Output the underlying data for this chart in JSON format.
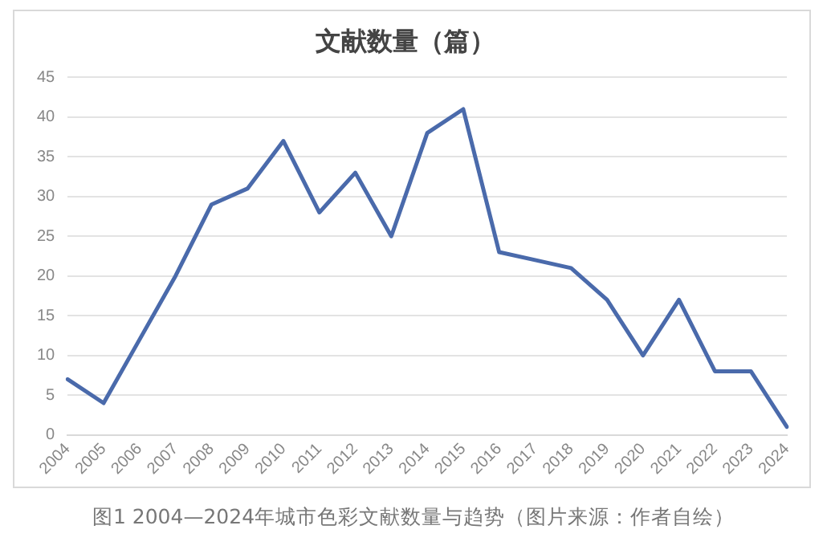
{
  "chart_data": {
    "type": "line",
    "title": "文献数量（篇）",
    "categories": [
      "2004",
      "2005",
      "2006",
      "2007",
      "2008",
      "2009",
      "2010",
      "2011",
      "2012",
      "2013",
      "2014",
      "2015",
      "2016",
      "2017",
      "2018",
      "2019",
      "2020",
      "2021",
      "2022",
      "2023",
      "2024"
    ],
    "series": [
      {
        "color": "#4a6aab",
        "values": [
          7,
          4,
          12,
          20,
          29,
          31,
          37,
          28,
          33,
          25,
          38,
          41,
          23,
          22,
          21,
          17,
          10,
          17,
          8,
          8,
          1
        ]
      }
    ],
    "ylim": [
      0,
      45
    ],
    "yticks": [
      0,
      5,
      10,
      15,
      20,
      25,
      30,
      35,
      40,
      45
    ],
    "grid": "y",
    "legend": false,
    "marker": "none",
    "line_style": "solid",
    "annotations": [
      "图1  2004—2024年城市色彩文献数量与趋势（图片来源：作者自绘）"
    ]
  }
}
